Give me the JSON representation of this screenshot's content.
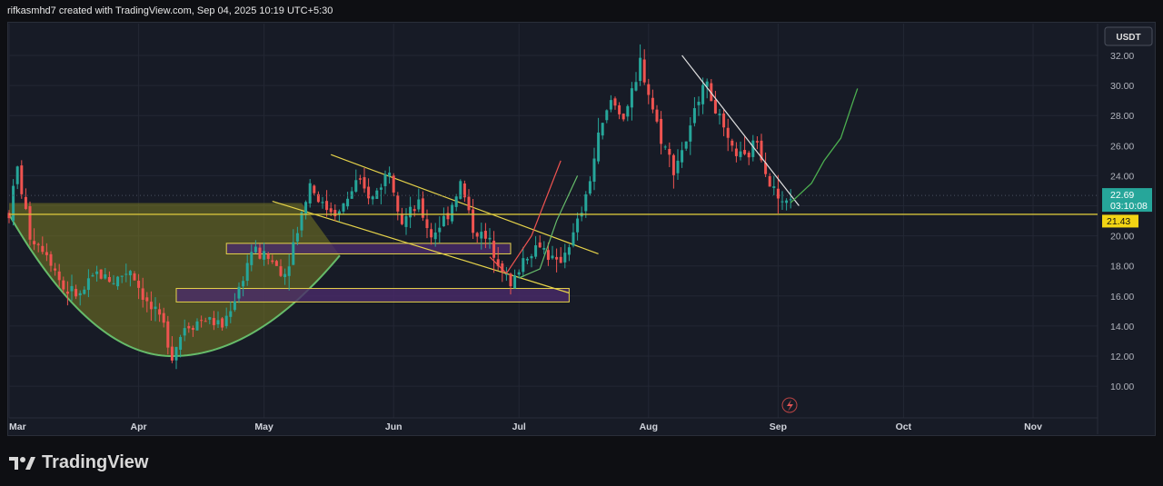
{
  "header": {
    "text": "rifkasmhd7 created with TradingView.com, Sep 04, 2025 10:19 UTC+5:30"
  },
  "footer": {
    "brand": "TradingView"
  },
  "colors": {
    "background": "#171b26",
    "up_candle": "#26a69a",
    "down_candle": "#ef5350",
    "cup_fill": "#7a7a22",
    "cup_line": "#66bb6a",
    "trendline_yellow": "#e6d34a",
    "trendline_white": "#e0e0e0",
    "support_line": "#d4c13a",
    "box_fill": "#4a2a6a",
    "price_label": "#26a69a",
    "support_label": "#f2d414"
  },
  "chart_data": {
    "type": "candlestick",
    "currency": "USDT",
    "y_ticks": [
      "32.00",
      "30.00",
      "28.00",
      "26.00",
      "24.00",
      "22.00",
      "20.00",
      "18.00",
      "16.00",
      "14.00",
      "12.00",
      "10.00"
    ],
    "ylim": [
      9,
      33
    ],
    "x_ticks": [
      "Mar",
      "Apr",
      "May",
      "Jun",
      "Jul",
      "Aug",
      "Sep",
      "Oct",
      "Nov"
    ],
    "last_price": "22.69",
    "countdown": "03:10:08",
    "support_level": "21.43",
    "price_path": [
      [
        "2025-03-01",
        21.5
      ],
      [
        "2025-03-03",
        24.5
      ],
      [
        "2025-03-06",
        20.0
      ],
      [
        "2025-03-10",
        19.0
      ],
      [
        "2025-03-14",
        16.5
      ],
      [
        "2025-03-18",
        16.0
      ],
      [
        "2025-03-22",
        17.5
      ],
      [
        "2025-03-26",
        17.0
      ],
      [
        "2025-03-30",
        17.8
      ],
      [
        "2025-04-03",
        15.5
      ],
      [
        "2025-04-07",
        14.0
      ],
      [
        "2025-04-09",
        12.1
      ],
      [
        "2025-04-12",
        14.0
      ],
      [
        "2025-04-17",
        14.5
      ],
      [
        "2025-04-21",
        14.0
      ],
      [
        "2025-04-25",
        16.5
      ],
      [
        "2025-04-28",
        19.0
      ],
      [
        "2025-05-02",
        18.5
      ],
      [
        "2025-05-06",
        17.5
      ],
      [
        "2025-05-09",
        20.5
      ],
      [
        "2025-05-12",
        23.5
      ],
      [
        "2025-05-15",
        22.0
      ],
      [
        "2025-05-19",
        21.5
      ],
      [
        "2025-05-23",
        23.5
      ],
      [
        "2025-05-27",
        22.5
      ],
      [
        "2025-05-31",
        24.5
      ],
      [
        "2025-06-03",
        21.0
      ],
      [
        "2025-06-07",
        22.0
      ],
      [
        "2025-06-10",
        20.0
      ],
      [
        "2025-06-14",
        21.5
      ],
      [
        "2025-06-17",
        23.5
      ],
      [
        "2025-06-20",
        20.5
      ],
      [
        "2025-06-24",
        19.5
      ],
      [
        "2025-06-27",
        18.0
      ],
      [
        "2025-06-29",
        16.5
      ],
      [
        "2025-07-02",
        18.5
      ],
      [
        "2025-07-06",
        19.5
      ],
      [
        "2025-07-10",
        18.0
      ],
      [
        "2025-07-14",
        20.0
      ],
      [
        "2025-07-17",
        22.5
      ],
      [
        "2025-07-20",
        26.5
      ],
      [
        "2025-07-23",
        29.0
      ],
      [
        "2025-07-26",
        28.0
      ],
      [
        "2025-07-29",
        30.0
      ],
      [
        "2025-07-30",
        31.6
      ],
      [
        "2025-08-01",
        29.5
      ],
      [
        "2025-08-04",
        26.5
      ],
      [
        "2025-08-07",
        24.5
      ],
      [
        "2025-08-11",
        27.0
      ],
      [
        "2025-08-14",
        30.5
      ],
      [
        "2025-08-17",
        28.5
      ],
      [
        "2025-08-20",
        26.0
      ],
      [
        "2025-08-24",
        25.0
      ],
      [
        "2025-08-27",
        26.5
      ],
      [
        "2025-08-30",
        23.5
      ],
      [
        "2025-09-02",
        22.0
      ],
      [
        "2025-09-04",
        22.69
      ]
    ],
    "annotations": {
      "cup_top_level": 22.0,
      "cup_bottom": {
        "date": "2025-04-09",
        "price": 12.0
      },
      "support_line": 21.43,
      "zone_boxes": [
        {
          "from": "2025-04-22",
          "to": "2025-06-29",
          "low": 18.8,
          "high": 19.5
        },
        {
          "from": "2025-04-10",
          "to": "2025-07-13",
          "low": 15.6,
          "high": 16.5
        },
        {
          "label": "descending channel upper",
          "from": "2025-05-17",
          "to": "2025-07-20",
          "start": 25.4,
          "end": 18.8
        },
        {
          "label": "descending channel lower",
          "from": "2025-05-03",
          "to": "2025-07-13",
          "start": 22.3,
          "end": 16.2
        }
      ],
      "downtrend_line": {
        "from": [
          "2025-08-09",
          32.0
        ],
        "to": [
          "2025-09-06",
          22.0
        ]
      },
      "projection": [
        [
          "2025-09-04",
          22.2
        ],
        [
          "2025-09-09",
          23.5
        ],
        [
          "2025-09-12",
          25.0
        ],
        [
          "2025-09-16",
          26.5
        ],
        [
          "2025-09-19",
          29.0
        ],
        [
          "2025-09-20",
          29.8
        ]
      ]
    }
  }
}
